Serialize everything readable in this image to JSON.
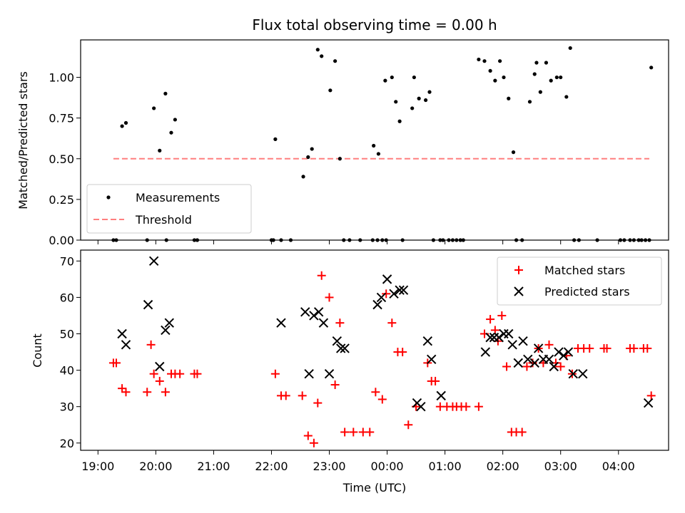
{
  "chart_data": [
    {
      "type": "scatter",
      "title": "Flux total observing time = 0.00 h",
      "ylabel": "Matched/Predicted stars",
      "xlabel": "",
      "ylim": [
        0,
        1.23
      ],
      "yticks": [
        "0.00",
        "0.25",
        "0.50",
        "0.75",
        "1.00"
      ],
      "yticks_values": [
        0,
        0.25,
        0.5,
        0.75,
        1.0
      ],
      "legend_position": "lower-left",
      "series": [
        {
          "name": "Measurements",
          "marker": "dot",
          "color": "#000000",
          "x": [
            "19:16",
            "19:19",
            "19:25",
            "19:29",
            "19:51",
            "19:58",
            "20:04",
            "20:10",
            "20:11",
            "20:16",
            "20:20",
            "20:40",
            "20:43",
            "22:00",
            "22:02",
            "22:04",
            "22:10",
            "22:20",
            "22:33",
            "22:38",
            "22:42",
            "22:48",
            "22:52",
            "23:01",
            "23:06",
            "23:11",
            "23:15",
            "23:21",
            "23:32",
            "23:45",
            "23:50",
            "23:55",
            "23:59",
            "23:46",
            "23:51",
            "23:58",
            "00:05",
            "00:09",
            "00:13",
            "00:16",
            "00:26",
            "00:28",
            "00:33",
            "00:40",
            "00:44",
            "00:48",
            "00:55",
            "00:58",
            "01:04",
            "01:08",
            "01:12",
            "01:16",
            "01:19",
            "01:35",
            "01:41",
            "01:47",
            "01:52",
            "01:57",
            "02:01",
            "02:06",
            "02:11",
            "02:14",
            "02:20",
            "02:28",
            "02:33",
            "02:35",
            "02:39",
            "02:45",
            "02:50",
            "02:56",
            "03:00",
            "03:06",
            "03:10",
            "03:14",
            "03:19",
            "03:38",
            "04:02",
            "04:06",
            "04:12",
            "04:16",
            "04:21",
            "04:24",
            "04:28",
            "04:32",
            "04:34"
          ],
          "y": [
            0,
            0,
            0.7,
            0.72,
            0,
            0.81,
            0.55,
            0.9,
            0,
            0.66,
            0.74,
            0,
            0,
            0,
            0,
            0.62,
            0,
            0,
            0.39,
            0.51,
            0.56,
            1.17,
            1.13,
            0.92,
            1.1,
            0.5,
            0,
            0,
            0,
            0,
            0,
            0,
            0,
            0.58,
            0.53,
            0.98,
            1.0,
            0.85,
            0.73,
            0,
            0.81,
            1.0,
            0.87,
            0.86,
            0.91,
            0,
            0,
            0,
            0,
            0,
            0,
            0,
            0,
            1.11,
            1.1,
            1.04,
            0.98,
            1.1,
            1.0,
            0.87,
            0.54,
            0,
            0,
            0.85,
            1.02,
            1.09,
            0.91,
            1.09,
            0.98,
            1.0,
            1.0,
            0.88,
            1.18,
            0,
            0,
            0,
            0,
            0,
            0,
            0,
            0,
            0,
            0,
            0,
            1.06
          ]
        },
        {
          "name": "Threshold",
          "marker": "dashed-line",
          "color": "#ff7f7f",
          "x": [
            "19:16",
            "04:32"
          ],
          "y": [
            0.5,
            0.5
          ]
        }
      ]
    },
    {
      "type": "scatter",
      "title": "",
      "ylabel": "Count",
      "xlabel": "Time (UTC)",
      "ylim": [
        18,
        73
      ],
      "yticks": [
        "20",
        "30",
        "40",
        "50",
        "60",
        "70"
      ],
      "yticks_values": [
        20,
        30,
        40,
        50,
        60,
        70
      ],
      "xticks": [
        "19:00",
        "20:00",
        "21:00",
        "22:00",
        "23:00",
        "00:00",
        "01:00",
        "02:00",
        "03:00",
        "04:00"
      ],
      "legend_position": "top-right",
      "series": [
        {
          "name": "Matched stars",
          "marker": "plus",
          "color": "#ff0000",
          "x": [
            "19:16",
            "19:19",
            "19:25",
            "19:29",
            "19:51",
            "19:55",
            "19:58",
            "20:04",
            "20:10",
            "20:16",
            "20:20",
            "20:25",
            "20:40",
            "20:43",
            "22:04",
            "22:10",
            "22:15",
            "22:32",
            "22:38",
            "22:44",
            "22:48",
            "22:52",
            "23:00",
            "23:06",
            "23:11",
            "23:16",
            "23:25",
            "23:35",
            "23:42",
            "23:48",
            "23:55",
            "23:59",
            "00:05",
            "00:11",
            "00:16",
            "00:22",
            "00:30",
            "00:42",
            "00:46",
            "00:50",
            "00:55",
            "01:02",
            "01:08",
            "01:12",
            "01:17",
            "01:22",
            "01:35",
            "01:41",
            "01:47",
            "01:52",
            "01:55",
            "01:59",
            "02:04",
            "02:09",
            "02:14",
            "02:20",
            "02:25",
            "02:31",
            "02:37",
            "02:42",
            "02:48",
            "02:55",
            "03:00",
            "03:06",
            "03:12",
            "03:18",
            "03:24",
            "03:30",
            "03:45",
            "03:48",
            "04:12",
            "04:16",
            "04:26",
            "04:30",
            "04:34"
          ],
          "y": [
            42,
            42,
            35,
            34,
            34,
            47,
            39,
            37,
            34,
            39,
            39,
            39,
            39,
            39,
            39,
            33,
            33,
            33,
            22,
            20,
            31,
            66,
            60,
            36,
            53,
            23,
            23,
            23,
            23,
            34,
            32,
            61,
            53,
            45,
            45,
            25,
            30,
            42,
            37,
            37,
            30,
            30,
            30,
            30,
            30,
            30,
            30,
            50,
            54,
            51,
            48,
            55,
            41,
            23,
            23,
            23,
            41,
            42,
            46,
            42,
            47,
            42,
            41,
            44,
            39,
            46,
            46,
            46,
            46,
            46,
            46,
            46,
            46,
            46,
            33
          ]
        },
        {
          "name": "Predicted stars",
          "marker": "x",
          "color": "#000000",
          "x": [
            "19:25",
            "19:29",
            "19:52",
            "19:58",
            "20:04",
            "20:10",
            "20:14",
            "22:10",
            "22:35",
            "22:39",
            "22:44",
            "22:49",
            "22:54",
            "23:00",
            "23:08",
            "23:12",
            "23:16",
            "23:50",
            "23:54",
            "00:00",
            "00:07",
            "00:13",
            "00:17",
            "00:31",
            "00:35",
            "00:42",
            "00:46",
            "00:56",
            "01:42",
            "01:47",
            "01:51",
            "01:56",
            "02:01",
            "02:06",
            "02:10",
            "02:16",
            "02:21",
            "02:26",
            "02:33",
            "02:37",
            "02:42",
            "02:48",
            "02:53",
            "02:58",
            "03:03",
            "03:08",
            "03:13",
            "03:23",
            "04:31"
          ],
          "y": [
            50,
            47,
            58,
            70,
            41,
            51,
            53,
            53,
            56,
            39,
            55,
            56,
            53,
            39,
            48,
            46,
            46,
            58,
            60,
            65,
            61,
            62,
            62,
            31,
            30,
            48,
            43,
            33,
            45,
            49,
            49,
            49,
            50,
            50,
            47,
            42,
            48,
            43,
            42,
            46,
            43,
            43,
            41,
            45,
            44,
            45,
            39,
            39,
            31
          ]
        }
      ]
    }
  ]
}
